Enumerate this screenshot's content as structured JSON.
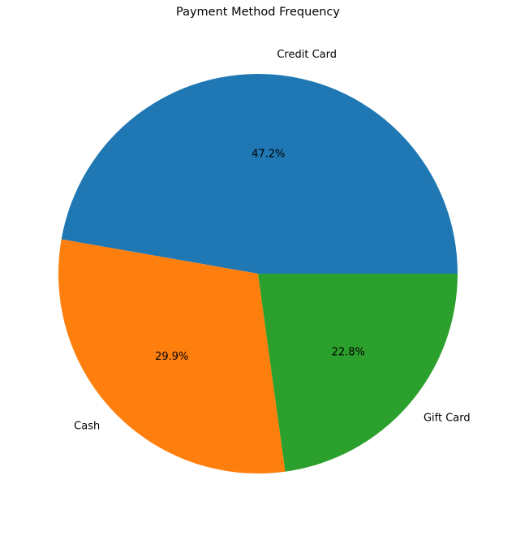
{
  "chart_data": {
    "type": "pie",
    "title": "Payment Method Frequency",
    "start_angle_deg": 0,
    "direction": "counterclockwise",
    "slices": [
      {
        "label": "Credit Card",
        "value": 47.2,
        "pct_label": "47.2%",
        "color": "#1f77b4"
      },
      {
        "label": "Cash",
        "value": 29.9,
        "pct_label": "29.9%",
        "color": "#ff7f0e"
      },
      {
        "label": "Gift Card",
        "value": 22.8,
        "pct_label": "22.8%",
        "color": "#2ca02c"
      }
    ]
  }
}
